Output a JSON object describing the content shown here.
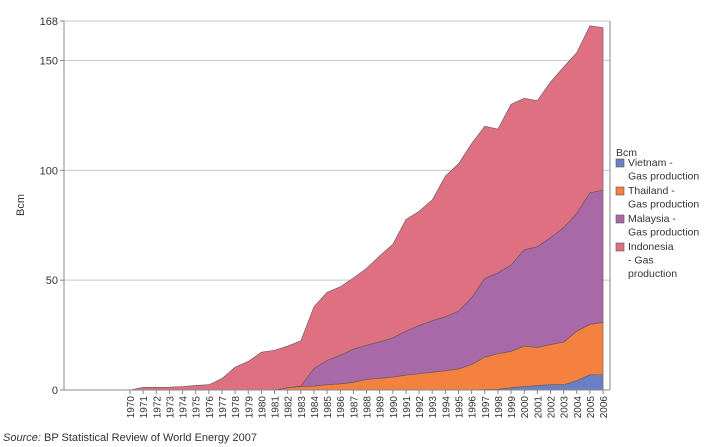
{
  "chart_data": {
    "type": "area",
    "stacked": true,
    "title": "",
    "xlabel": "",
    "ylabel": "Bcm",
    "ylim": [
      0,
      168
    ],
    "yticks": [
      0,
      50,
      100,
      150,
      168
    ],
    "grid": true,
    "legend_title": "Bcm",
    "legend_position": "right",
    "x": [
      1970,
      1971,
      1972,
      1973,
      1974,
      1975,
      1976,
      1977,
      1978,
      1979,
      1980,
      1981,
      1982,
      1983,
      1984,
      1985,
      1986,
      1987,
      1988,
      1989,
      1990,
      1991,
      1992,
      1993,
      1994,
      1995,
      1996,
      1997,
      1998,
      1999,
      2000,
      2001,
      2002,
      2003,
      2004,
      2005,
      2006
    ],
    "series": [
      {
        "name": "Vietnam - Gas production",
        "color": "#6b7fc4",
        "values": [
          0,
          0,
          0,
          0,
          0,
          0,
          0,
          0,
          0,
          0,
          0,
          0,
          0,
          0,
          0,
          0,
          0,
          0,
          0,
          0,
          0,
          0,
          0,
          0,
          0,
          0,
          0,
          0.2,
          0.3,
          1.0,
          1.6,
          2.0,
          2.4,
          2.4,
          4.2,
          6.9,
          7.0
        ]
      },
      {
        "name": "Thailand - Gas production",
        "color": "#f4813f",
        "values": [
          0,
          0,
          0,
          0,
          0,
          0,
          0,
          0,
          0,
          0,
          0,
          0,
          1.0,
          1.6,
          1.8,
          2.4,
          2.8,
          3.5,
          4.8,
          5.3,
          5.9,
          6.8,
          7.4,
          8.1,
          8.8,
          9.6,
          11.6,
          14.8,
          16.2,
          16.6,
          18.4,
          17.4,
          18.3,
          19.4,
          22.6,
          23.0,
          23.8
        ]
      },
      {
        "name": "Malaysia - Gas production",
        "color": "#a968a7",
        "values": [
          0,
          0,
          0,
          0,
          0,
          0,
          0,
          0,
          0,
          0,
          0,
          0,
          0,
          0.2,
          8.0,
          11.1,
          13.0,
          15.1,
          15.6,
          16.6,
          17.8,
          20.0,
          22.0,
          23.4,
          24.6,
          26.3,
          30.4,
          35.8,
          36.8,
          39.3,
          43.9,
          45.8,
          48.7,
          52.1,
          53.6,
          59.9,
          60.2
        ]
      },
      {
        "name": "Indonesia - Gas production",
        "color": "#df7082",
        "values": [
          0,
          1.2,
          1.2,
          1.3,
          1.6,
          2.1,
          2.4,
          5.2,
          10.4,
          13.0,
          17.2,
          18.1,
          19.0,
          20.6,
          28.1,
          31.0,
          31.2,
          32.4,
          35.0,
          39.2,
          42.6,
          50.8,
          52.0,
          55.0,
          64.0,
          67.1,
          70.2,
          69.3,
          65.5,
          73.2,
          68.9,
          66.5,
          70.8,
          73.1,
          73.2,
          76.0,
          74.0
        ]
      }
    ]
  },
  "source": {
    "label": "Source:",
    "text": "BP Statistical Review of World Energy 2007"
  }
}
